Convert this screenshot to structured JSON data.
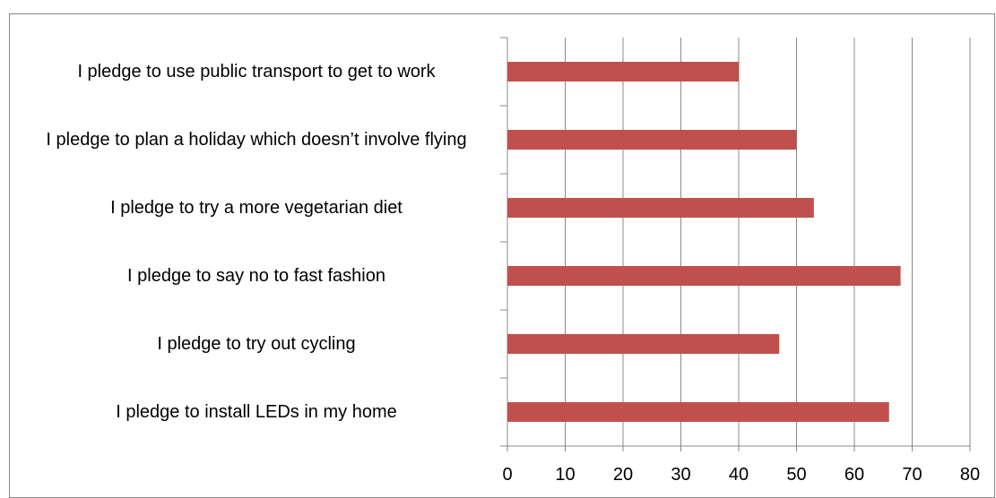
{
  "chart_data": {
    "type": "bar",
    "orientation": "horizontal",
    "categories": [
      "I pledge to use public transport to get to work",
      "I pledge to plan a holiday which doesn’t involve flying",
      "I pledge to try a more vegetarian diet",
      "I pledge to say no to fast fashion",
      "I pledge to try out cycling",
      "I pledge to install LEDs in my home"
    ],
    "values": [
      40,
      50,
      53,
      68,
      47,
      66
    ],
    "color": "#c0504d",
    "xlim": [
      0,
      80
    ],
    "xticks": [
      0,
      10,
      20,
      30,
      40,
      50,
      60,
      70,
      80
    ],
    "grid": true
  }
}
